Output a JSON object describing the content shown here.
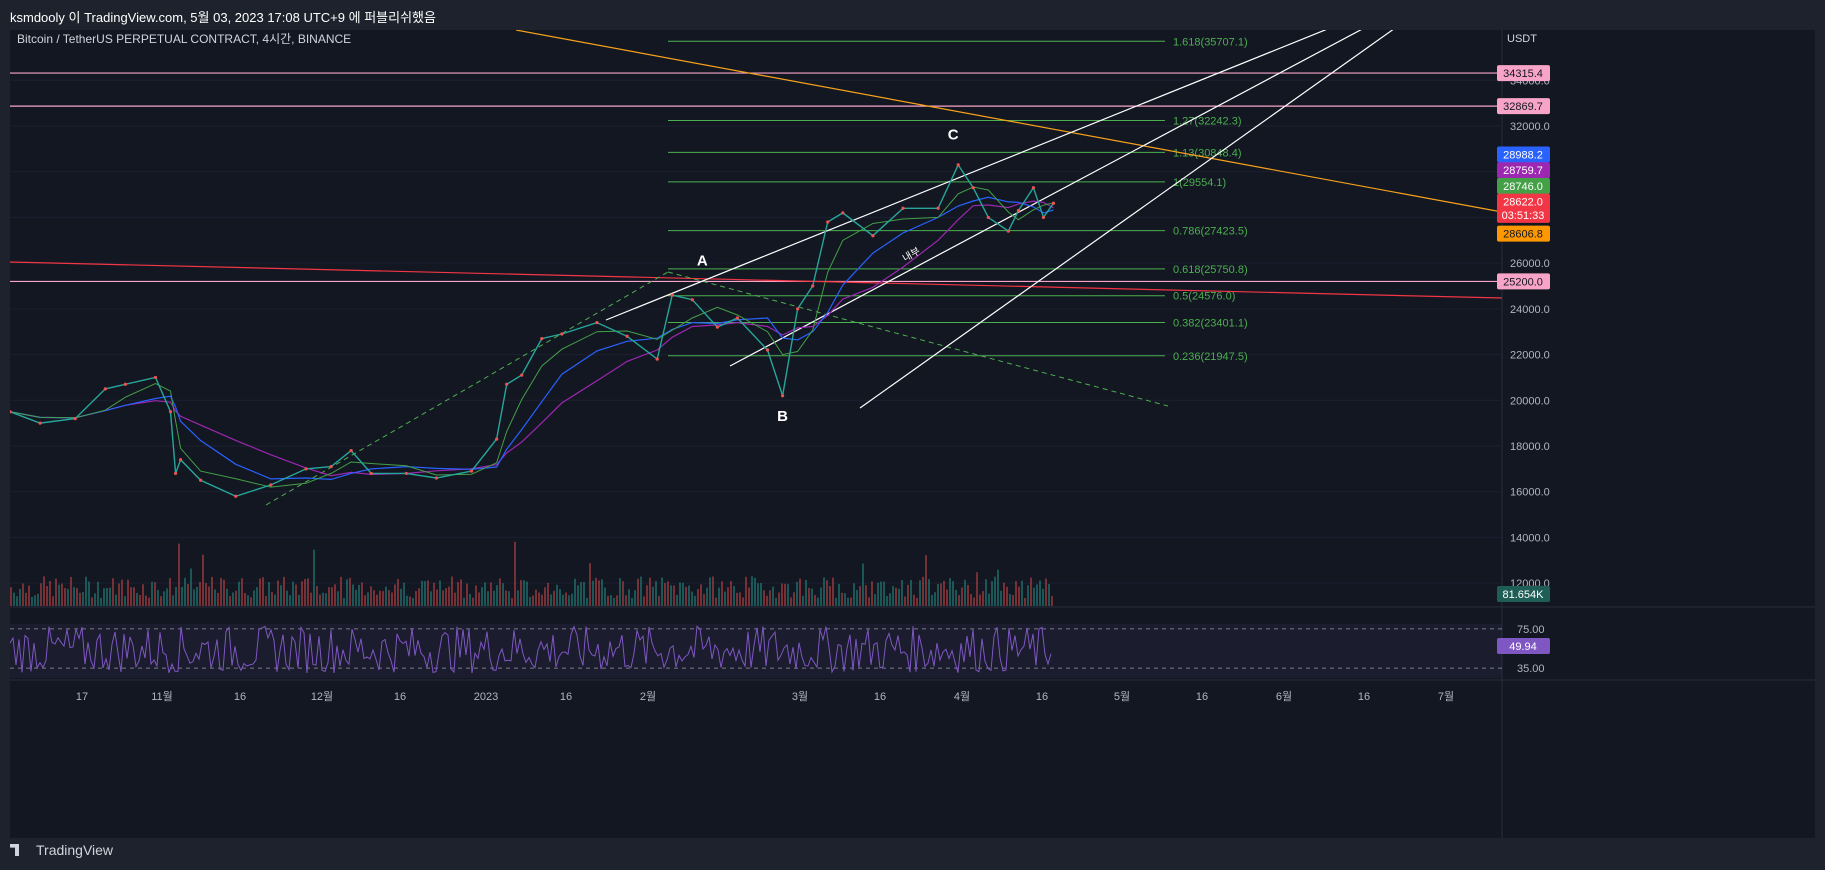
{
  "header": {
    "publish_line": "ksmdooly 이 TradingView.com, 5월 03, 2023 17:08 UTC+9 에 퍼블리쉬했음",
    "symbol": "Bitcoin / TetherUS PERPETUAL CONTRACT, 4시간, BINANCE",
    "currency": "USDT"
  },
  "footer": {
    "brand": "TradingView"
  },
  "colors": {
    "bg": "#131722",
    "grid": "#2a2e39",
    "axis_text": "#b2b5be",
    "fib": "#4caf50",
    "channel": "#ffffff",
    "orange_line": "#f7a21b",
    "red_line": "#f23645",
    "pink_level": "#f8a4c8",
    "rsi": "#7e57c2",
    "volume_up": "#26a69a",
    "volume_down": "#ef5350"
  },
  "chart_data": {
    "type": "line",
    "title": "Bitcoin / TetherUS PERPETUAL CONTRACT, 4시간, BINANCE",
    "ylabel": "USDT",
    "x_ticks": [
      "17",
      "11월",
      "16",
      "12월",
      "16",
      "2023",
      "16",
      "2월",
      "3월",
      "16",
      "4월",
      "16",
      "5월",
      "16",
      "6월",
      "16",
      "7월"
    ],
    "y_ticks": [
      "12000.0",
      "14000.0",
      "16000.0",
      "18000.0",
      "20000.0",
      "22000.0",
      "24000.0",
      "26000.0",
      "28000.0",
      "30000.0",
      "32000.0",
      "34000.0"
    ],
    "ylim": [
      11000,
      36200
    ],
    "date_range": [
      "2022-10-07",
      "2023-07-31"
    ],
    "price_series": {
      "name": "BTCUSDT",
      "x": [
        "2022-10-07",
        "2022-10-13",
        "2022-10-20",
        "2022-10-26",
        "2022-10-30",
        "2022-11-05",
        "2022-11-08",
        "2022-11-09",
        "2022-11-10",
        "2022-11-14",
        "2022-11-21",
        "2022-11-28",
        "2022-12-05",
        "2022-12-10",
        "2022-12-14",
        "2022-12-18",
        "2022-12-25",
        "2022-12-31",
        "2023-01-07",
        "2023-01-12",
        "2023-01-14",
        "2023-01-17",
        "2023-01-21",
        "2023-01-25",
        "2023-02-01",
        "2023-02-07",
        "2023-02-13",
        "2023-02-16",
        "2023-02-20",
        "2023-02-25",
        "2023-03-01",
        "2023-03-07",
        "2023-03-10",
        "2023-03-13",
        "2023-03-16",
        "2023-03-19",
        "2023-03-22",
        "2023-03-28",
        "2023-04-03",
        "2023-04-10",
        "2023-04-14",
        "2023-04-17",
        "2023-04-20",
        "2023-04-24",
        "2023-04-26",
        "2023-04-29",
        "2023-05-01",
        "2023-05-03"
      ],
      "y": [
        19500,
        19000,
        19200,
        20500,
        20700,
        21000,
        19500,
        16800,
        17400,
        16500,
        15800,
        16300,
        17000,
        17100,
        17800,
        16800,
        16800,
        16600,
        16900,
        18300,
        20700,
        21100,
        22700,
        22900,
        23400,
        22800,
        21800,
        24600,
        24400,
        23200,
        23600,
        22200,
        20200,
        24000,
        25000,
        27800,
        28200,
        27200,
        28400,
        28400,
        30300,
        29300,
        28000,
        27400,
        28300,
        29300,
        28000,
        28622
      ]
    },
    "overlays": {
      "horizontal_levels": [
        34315.4,
        32869.7,
        25200.0
      ],
      "fibonacci": [
        {
          "label": "1.618(35707.1)",
          "value": 35707.1
        },
        {
          "label": "1.27(32242.3)",
          "value": 32242.3
        },
        {
          "label": "1.13(30848.4)",
          "value": 30848.4
        },
        {
          "label": "1(29554.1)",
          "value": 29554.1
        },
        {
          "label": "0.786(27423.5)",
          "value": 27423.5
        },
        {
          "label": "0.618(25750.8)",
          "value": 25750.8
        },
        {
          "label": "0.5(24576.0)",
          "value": 24576.0
        },
        {
          "label": "0.382(23401.1)",
          "value": 23401.1
        },
        {
          "label": "0.236(21947.5)",
          "value": 21947.5
        }
      ],
      "wave_labels": [
        {
          "text": "A",
          "date": "2023-02-22",
          "value": 25900
        },
        {
          "text": "B",
          "date": "2023-03-10",
          "value": 19100
        },
        {
          "text": "C",
          "date": "2023-04-13",
          "value": 31400
        }
      ],
      "channel_note": "내부"
    },
    "price_tags": [
      {
        "value": "34315.4",
        "level": 34315.4,
        "color": "#f8a4c8",
        "text_color": "#131722"
      },
      {
        "value": "32869.7",
        "level": 32869.7,
        "color": "#f8a4c8",
        "text_color": "#131722"
      },
      {
        "value": "28988.2",
        "level": 30755,
        "color": "#2962ff",
        "text_color": "#ffffff"
      },
      {
        "value": "28759.7",
        "level": 30065,
        "color": "#9c27b0",
        "text_color": "#ffffff"
      },
      {
        "value": "28746.0",
        "level": 29375,
        "color": "#43a047",
        "text_color": "#ffffff"
      },
      {
        "value": "28622.0",
        "level": 28690,
        "color": "#f23645",
        "text_color": "#ffffff"
      },
      {
        "value": "03:51:33",
        "level": 28110,
        "color": "#f23645",
        "text_color": "#ffffff"
      },
      {
        "value": "28606.8",
        "level": 27290,
        "color": "#ff9800",
        "text_color": "#131722"
      },
      {
        "value": "25200.0",
        "level": 25200,
        "color": "#f8a4c8",
        "text_color": "#131722"
      }
    ],
    "volume": {
      "last_label": "81.654K"
    },
    "rsi": {
      "levels": [
        "75.00",
        "35.00"
      ],
      "last_value": "49.94"
    }
  }
}
